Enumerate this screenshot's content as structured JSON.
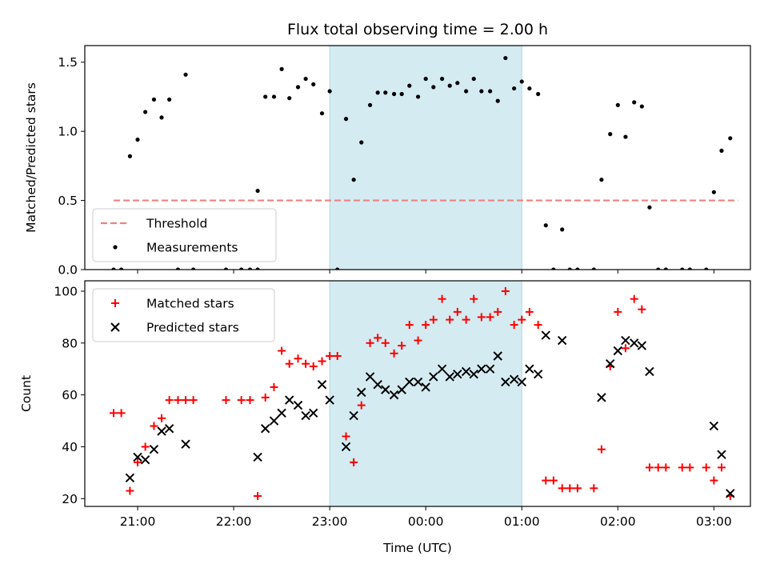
{
  "chart_data": {
    "type": "scatter",
    "title": "Flux total observing time = 2.00 h",
    "xlabel": "Time (UTC)",
    "x_unit": "hours of day (UTC), values >= 24 are next day",
    "xlim": [
      20.45,
      27.38
    ],
    "x_ticks": [
      21,
      22,
      23,
      24,
      25,
      26,
      27
    ],
    "x_tick_labels": [
      "21:00",
      "22:00",
      "23:00",
      "00:00",
      "01:00",
      "02:00",
      "03:00"
    ],
    "shaded_interval": {
      "start": 23.0,
      "end": 25.0,
      "color": "#add8e6"
    },
    "panels": [
      {
        "ylabel": "Matched/Predicted stars",
        "ylim": [
          0,
          1.62
        ],
        "y_ticks": [
          0.0,
          0.5,
          1.0,
          1.5
        ],
        "y_tick_labels": [
          "0.0",
          "0.5",
          "1.0",
          "1.5"
        ],
        "legend": {
          "position": "lower-left",
          "entries": [
            "Threshold",
            "Measurements"
          ]
        },
        "series": [
          {
            "name": "Threshold",
            "kind": "line",
            "style": "dashed",
            "color": "#f08080",
            "x": [
              20.75,
              27.25
            ],
            "y": [
              0.5,
              0.5
            ]
          },
          {
            "name": "Measurements",
            "kind": "dots",
            "color": "#000000",
            "points": [
              [
                20.75,
                0.0
              ],
              [
                20.83,
                0.0
              ],
              [
                20.92,
                0.82
              ],
              [
                21.0,
                0.94
              ],
              [
                21.08,
                1.14
              ],
              [
                21.17,
                1.23
              ],
              [
                21.25,
                1.1
              ],
              [
                21.33,
                1.23
              ],
              [
                21.42,
                0.0
              ],
              [
                21.5,
                1.41
              ],
              [
                21.58,
                0.0
              ],
              [
                21.92,
                0.0
              ],
              [
                22.08,
                0.0
              ],
              [
                22.17,
                0.0
              ],
              [
                22.25,
                0.0
              ],
              [
                22.25,
                0.57
              ],
              [
                22.33,
                1.25
              ],
              [
                22.42,
                1.25
              ],
              [
                22.5,
                1.45
              ],
              [
                22.58,
                1.24
              ],
              [
                22.67,
                1.32
              ],
              [
                22.75,
                1.38
              ],
              [
                22.83,
                1.34
              ],
              [
                22.92,
                1.13
              ],
              [
                23.0,
                1.29
              ],
              [
                23.08,
                0.0
              ],
              [
                23.17,
                1.09
              ],
              [
                23.25,
                0.65
              ],
              [
                23.33,
                0.92
              ],
              [
                23.42,
                1.19
              ],
              [
                23.5,
                1.28
              ],
              [
                23.58,
                1.28
              ],
              [
                23.67,
                1.27
              ],
              [
                23.75,
                1.27
              ],
              [
                23.83,
                1.33
              ],
              [
                23.92,
                1.25
              ],
              [
                24.0,
                1.38
              ],
              [
                24.08,
                1.32
              ],
              [
                24.17,
                1.38
              ],
              [
                24.25,
                1.33
              ],
              [
                24.33,
                1.35
              ],
              [
                24.42,
                1.29
              ],
              [
                24.5,
                1.38
              ],
              [
                24.58,
                1.29
              ],
              [
                24.67,
                1.29
              ],
              [
                24.75,
                1.22
              ],
              [
                24.83,
                1.53
              ],
              [
                24.92,
                1.31
              ],
              [
                25.0,
                1.36
              ],
              [
                25.08,
                1.31
              ],
              [
                25.17,
                1.27
              ],
              [
                25.25,
                0.32
              ],
              [
                25.33,
                0.0
              ],
              [
                25.42,
                0.29
              ],
              [
                25.5,
                0.0
              ],
              [
                25.58,
                0.0
              ],
              [
                25.75,
                0.0
              ],
              [
                25.83,
                0.65
              ],
              [
                25.92,
                0.98
              ],
              [
                26.0,
                1.19
              ],
              [
                26.08,
                0.96
              ],
              [
                26.17,
                1.21
              ],
              [
                26.25,
                1.18
              ],
              [
                26.33,
                0.45
              ],
              [
                26.42,
                0.0
              ],
              [
                26.5,
                0.0
              ],
              [
                26.67,
                0.0
              ],
              [
                26.75,
                0.0
              ],
              [
                26.92,
                0.0
              ],
              [
                27.0,
                0.56
              ],
              [
                27.08,
                0.86
              ],
              [
                27.17,
                0.95
              ]
            ]
          }
        ]
      },
      {
        "ylabel": "Count",
        "ylim": [
          17,
          104
        ],
        "y_ticks": [
          20,
          40,
          60,
          80,
          100
        ],
        "y_tick_labels": [
          "20",
          "40",
          "60",
          "80",
          "100"
        ],
        "legend": {
          "position": "upper-left",
          "entries": [
            "Matched stars",
            "Predicted stars"
          ]
        },
        "series": [
          {
            "name": "Matched stars",
            "kind": "plus",
            "color": "#ff0000",
            "points": [
              [
                20.75,
                53
              ],
              [
                20.83,
                53
              ],
              [
                20.92,
                23
              ],
              [
                21.0,
                34
              ],
              [
                21.08,
                40
              ],
              [
                21.17,
                48
              ],
              [
                21.25,
                51
              ],
              [
                21.33,
                58
              ],
              [
                21.42,
                58
              ],
              [
                21.5,
                58
              ],
              [
                21.58,
                58
              ],
              [
                21.92,
                58
              ],
              [
                22.08,
                58
              ],
              [
                22.17,
                58
              ],
              [
                22.25,
                21
              ],
              [
                22.33,
                59
              ],
              [
                22.42,
                63
              ],
              [
                22.5,
                77
              ],
              [
                22.58,
                72
              ],
              [
                22.67,
                74
              ],
              [
                22.75,
                72
              ],
              [
                22.83,
                71
              ],
              [
                22.92,
                73
              ],
              [
                23.0,
                75
              ],
              [
                23.08,
                75
              ],
              [
                23.17,
                44
              ],
              [
                23.25,
                34
              ],
              [
                23.33,
                56
              ],
              [
                23.42,
                80
              ],
              [
                23.5,
                82
              ],
              [
                23.58,
                80
              ],
              [
                23.67,
                76
              ],
              [
                23.75,
                79
              ],
              [
                23.83,
                87
              ],
              [
                23.92,
                81
              ],
              [
                24.0,
                87
              ],
              [
                24.08,
                89
              ],
              [
                24.17,
                97
              ],
              [
                24.25,
                89
              ],
              [
                24.33,
                92
              ],
              [
                24.42,
                89
              ],
              [
                24.5,
                97
              ],
              [
                24.58,
                90
              ],
              [
                24.67,
                90
              ],
              [
                24.75,
                92
              ],
              [
                24.83,
                100
              ],
              [
                24.92,
                87
              ],
              [
                25.0,
                89
              ],
              [
                25.08,
                92
              ],
              [
                25.17,
                87
              ],
              [
                25.25,
                27
              ],
              [
                25.33,
                27
              ],
              [
                25.42,
                24
              ],
              [
                25.5,
                24
              ],
              [
                25.58,
                24
              ],
              [
                25.75,
                24
              ],
              [
                25.83,
                39
              ],
              [
                25.92,
                71
              ],
              [
                26.0,
                92
              ],
              [
                26.08,
                78
              ],
              [
                26.17,
                97
              ],
              [
                26.25,
                93
              ],
              [
                26.33,
                32
              ],
              [
                26.42,
                32
              ],
              [
                26.5,
                32
              ],
              [
                26.67,
                32
              ],
              [
                26.75,
                32
              ],
              [
                26.92,
                32
              ],
              [
                27.0,
                27
              ],
              [
                27.08,
                32
              ],
              [
                27.17,
                21
              ]
            ]
          },
          {
            "name": "Predicted stars",
            "kind": "cross",
            "color": "#000000",
            "points": [
              [
                20.92,
                28
              ],
              [
                21.0,
                36
              ],
              [
                21.08,
                35
              ],
              [
                21.17,
                39
              ],
              [
                21.25,
                46
              ],
              [
                21.33,
                47
              ],
              [
                21.5,
                41
              ],
              [
                22.25,
                36
              ],
              [
                22.33,
                47
              ],
              [
                22.42,
                50
              ],
              [
                22.5,
                53
              ],
              [
                22.58,
                58
              ],
              [
                22.67,
                56
              ],
              [
                22.75,
                52
              ],
              [
                22.83,
                53
              ],
              [
                22.92,
                64
              ],
              [
                23.0,
                58
              ],
              [
                23.17,
                40
              ],
              [
                23.25,
                52
              ],
              [
                23.33,
                61
              ],
              [
                23.42,
                67
              ],
              [
                23.5,
                64
              ],
              [
                23.58,
                62
              ],
              [
                23.67,
                60
              ],
              [
                23.75,
                62
              ],
              [
                23.83,
                65
              ],
              [
                23.92,
                65
              ],
              [
                24.0,
                63
              ],
              [
                24.08,
                67
              ],
              [
                24.17,
                70
              ],
              [
                24.25,
                67
              ],
              [
                24.33,
                68
              ],
              [
                24.42,
                69
              ],
              [
                24.5,
                68
              ],
              [
                24.58,
                70
              ],
              [
                24.67,
                70
              ],
              [
                24.75,
                75
              ],
              [
                24.83,
                65
              ],
              [
                24.92,
                66
              ],
              [
                25.0,
                65
              ],
              [
                25.08,
                70
              ],
              [
                25.17,
                68
              ],
              [
                25.25,
                83
              ],
              [
                25.42,
                81
              ],
              [
                25.83,
                59
              ],
              [
                25.92,
                72
              ],
              [
                26.0,
                77
              ],
              [
                26.08,
                81
              ],
              [
                26.17,
                80
              ],
              [
                26.25,
                79
              ],
              [
                26.33,
                69
              ],
              [
                27.0,
                48
              ],
              [
                27.08,
                37
              ],
              [
                27.17,
                22
              ]
            ]
          }
        ]
      }
    ]
  }
}
